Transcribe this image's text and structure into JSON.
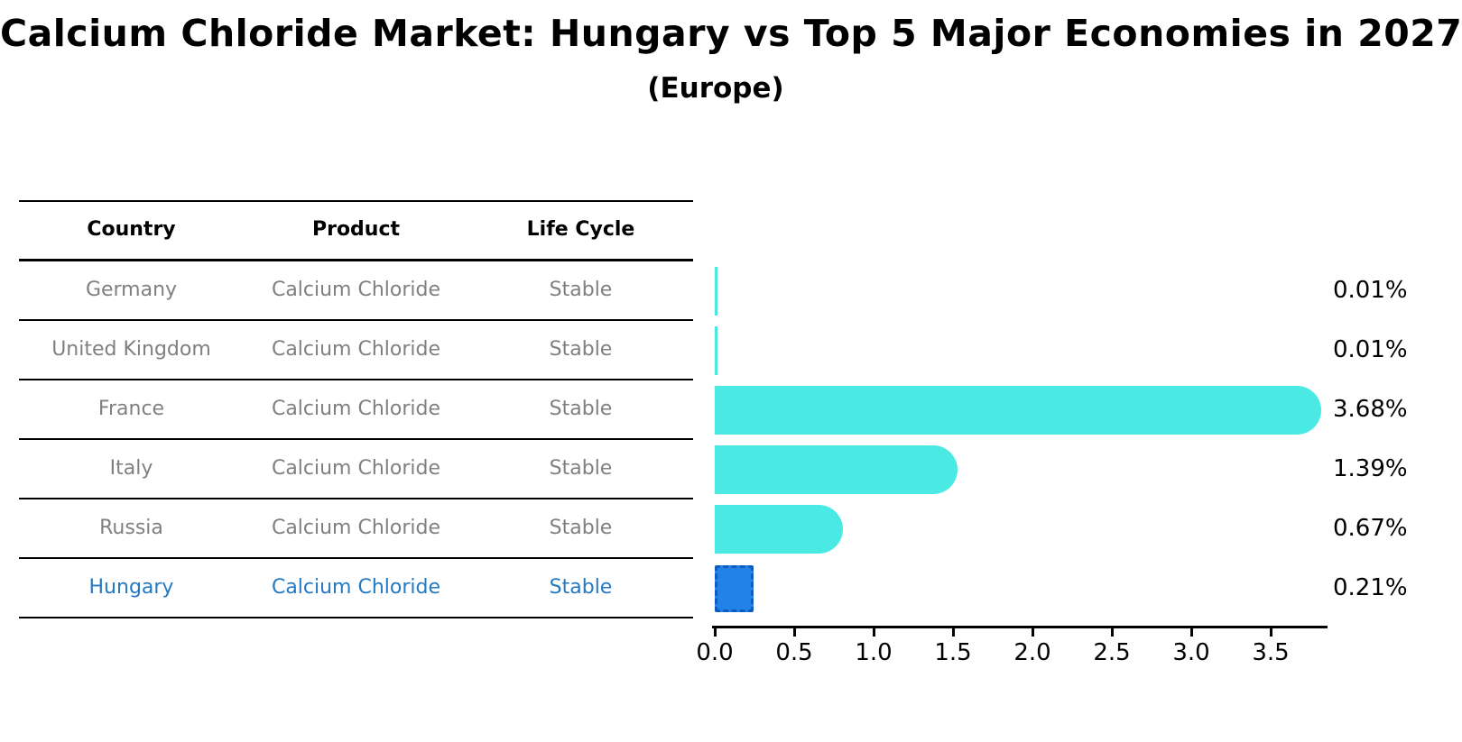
{
  "title": "Calcium Chloride Market: Hungary vs Top 5 Major Economies in 2027",
  "subtitle": "(Europe)",
  "table": {
    "headers": [
      "Country",
      "Product",
      "Life Cycle"
    ],
    "rows": [
      {
        "country": "Germany",
        "product": "Calcium Chloride",
        "life_cycle": "Stable",
        "highlight": false
      },
      {
        "country": "United Kingdom",
        "product": "Calcium Chloride",
        "life_cycle": "Stable",
        "highlight": false
      },
      {
        "country": "France",
        "product": "Calcium Chloride",
        "life_cycle": "Stable",
        "highlight": false
      },
      {
        "country": "Italy",
        "product": "Calcium Chloride",
        "life_cycle": "Stable",
        "highlight": false
      },
      {
        "country": "Russia",
        "product": "Calcium Chloride",
        "life_cycle": "Stable",
        "highlight": false
      },
      {
        "country": "Hungary",
        "product": "Calcium Chloride",
        "life_cycle": "Stable",
        "highlight": true
      }
    ]
  },
  "chart_data": {
    "type": "bar",
    "orientation": "horizontal",
    "title": "Calcium Chloride Market: Hungary vs Top 5 Major Economies in 2027",
    "subtitle": "(Europe)",
    "categories": [
      "Germany",
      "United Kingdom",
      "France",
      "Italy",
      "Russia",
      "Hungary"
    ],
    "values": [
      0.01,
      0.01,
      3.68,
      1.39,
      0.67,
      0.21
    ],
    "value_labels": [
      "0.01%",
      "0.01%",
      "3.68%",
      "1.39%",
      "0.67%",
      "0.21%"
    ],
    "x_tick_labels": [
      "0.0",
      "0.5",
      "1.0",
      "1.5",
      "2.0",
      "2.5",
      "3.0",
      "3.5"
    ],
    "xlim": [
      0,
      3.9
    ],
    "grid": false,
    "legend": "none",
    "highlight_category": "Hungary",
    "colors": {
      "bar": "#4BE9E3",
      "highlight_bar_fill": "#2282E8",
      "highlight_bar_border": "#0F5CC0",
      "highlight_text": "#2379C2",
      "table_text": "#808080",
      "text": "#000000"
    }
  }
}
